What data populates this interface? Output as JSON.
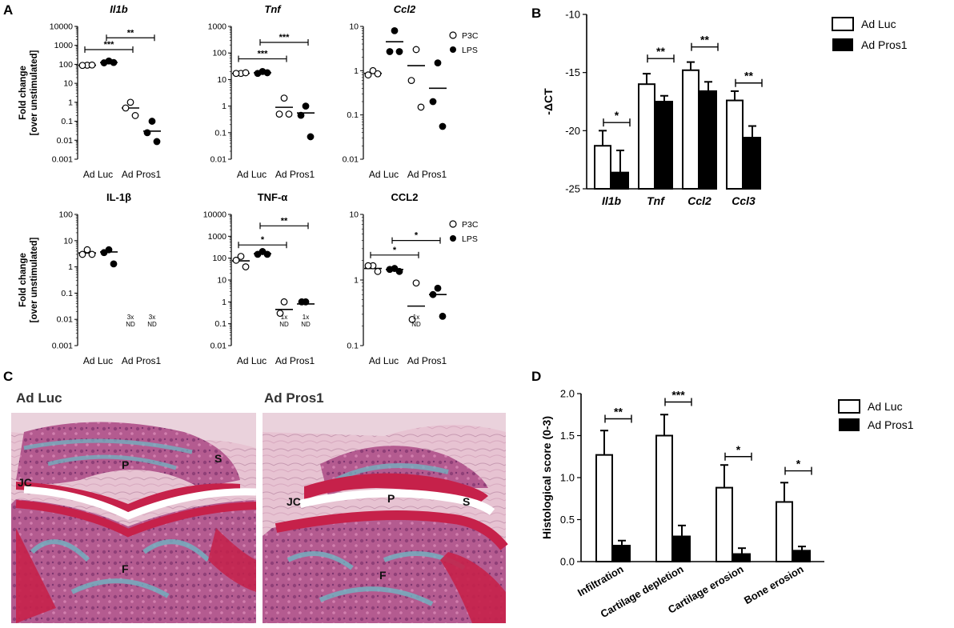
{
  "panel_labels": [
    "A",
    "B",
    "C",
    "D"
  ],
  "legend_dots": {
    "open": "P3C",
    "filled": "LPS"
  },
  "legend_bars": {
    "open": "Ad Luc",
    "filled": "Ad Pros1"
  },
  "colors": {
    "ink": "#000000",
    "open_fill": "#ffffff",
    "photo_cartilage": "#c6214a",
    "photo_stain": "#6fb4c2",
    "photo_marrow": "#b55b8f"
  },
  "chart_data": [
    {
      "id": "A1",
      "type": "scatter",
      "title": "Il1b",
      "title_italic": true,
      "ylabel": [
        "Fold change",
        "[over unstimulated]"
      ],
      "log": true,
      "ylim": [
        0.001,
        10000
      ],
      "yticks": [
        "0.001",
        "0.01",
        "0.1",
        "1",
        "10",
        "100",
        "1000",
        "10000"
      ],
      "xlabels": [
        "Ad Luc",
        "Ad Pros1"
      ],
      "groups": [
        {
          "pos": 0,
          "filled": false,
          "points": [
            90,
            88,
            92
          ],
          "median": 90
        },
        {
          "pos": 1,
          "filled": true,
          "points": [
            150,
            120,
            125
          ],
          "median": 125
        },
        {
          "pos": 2,
          "filled": false,
          "points": [
            1.0,
            0.5,
            0.2
          ],
          "median": 0.5
        },
        {
          "pos": 3,
          "filled": true,
          "points": [
            0.1,
            0.025,
            0.0085
          ],
          "median": 0.03
        }
      ],
      "sig": [
        {
          "from": 0,
          "to": 2,
          "y": 600,
          "label": "***"
        },
        {
          "from": 1,
          "to": 3,
          "y": 2500,
          "label": "**"
        }
      ],
      "legend": true
    },
    {
      "id": "A2",
      "type": "scatter",
      "title": "Tnf",
      "title_italic": true,
      "log": true,
      "ylim": [
        0.01,
        1000
      ],
      "yticks": [
        "0.01",
        "0.1",
        "1",
        "10",
        "100",
        "1000"
      ],
      "xlabels": [
        "Ad Luc",
        "Ad Pros1"
      ],
      "groups": [
        {
          "pos": 0,
          "filled": false,
          "points": [
            17,
            17,
            18
          ],
          "median": 17
        },
        {
          "pos": 1,
          "filled": true,
          "points": [
            20,
            17,
            18
          ],
          "median": 18
        },
        {
          "pos": 2,
          "filled": false,
          "points": [
            2.0,
            0.5,
            0.5
          ],
          "median": 0.9
        },
        {
          "pos": 3,
          "filled": true,
          "points": [
            1.0,
            0.45,
            0.07
          ],
          "median": 0.55
        }
      ],
      "sig": [
        {
          "from": 0,
          "to": 2,
          "y": 60,
          "label": "***"
        },
        {
          "from": 1,
          "to": 3,
          "y": 250,
          "label": "***"
        }
      ]
    },
    {
      "id": "A3",
      "type": "scatter",
      "title": "Ccl2",
      "title_italic": true,
      "log": true,
      "ylim": [
        0.01,
        10
      ],
      "yticks": [
        "0.01",
        "0.1",
        "1",
        "10"
      ],
      "xlabels": [
        "Ad Luc",
        "Ad Pros1"
      ],
      "groups": [
        {
          "pos": 0,
          "filled": false,
          "points": [
            1.0,
            0.8,
            0.85
          ],
          "median": 0.87
        },
        {
          "pos": 1,
          "filled": true,
          "points": [
            8.0,
            2.7,
            2.7
          ],
          "median": 4.5
        },
        {
          "pos": 2,
          "filled": false,
          "points": [
            3.0,
            0.6,
            0.15
          ],
          "median": 1.3
        },
        {
          "pos": 3,
          "filled": true,
          "points": [
            1.5,
            0.2,
            0.055
          ],
          "median": 0.4
        }
      ],
      "sig": [],
      "legend": true
    },
    {
      "id": "A4",
      "type": "scatter",
      "title": "IL-1β",
      "title_italic": false,
      "ylabel": [
        "Fold change",
        "[over unstimulated]"
      ],
      "log": true,
      "ylim": [
        0.001,
        100
      ],
      "yticks": [
        "0.001",
        "0.01",
        "0.1",
        "1",
        "10",
        "100"
      ],
      "xlabels": [
        "Ad Luc",
        "Ad Pros1"
      ],
      "groups": [
        {
          "pos": 0,
          "filled": false,
          "points": [
            4.5,
            3.0,
            3.0
          ],
          "median": 3.4
        },
        {
          "pos": 1,
          "filled": true,
          "points": [
            4.5,
            3.5,
            1.3
          ],
          "median": 3.7
        }
      ],
      "nd": [
        {
          "pos": 2,
          "text": [
            "3x",
            "ND"
          ]
        },
        {
          "pos": 3,
          "text": [
            "3x",
            "ND"
          ]
        }
      ],
      "sig": []
    },
    {
      "id": "A5",
      "type": "scatter",
      "title": "TNF-α",
      "title_italic": false,
      "log": true,
      "ylim": [
        0.01,
        10000
      ],
      "yticks": [
        "0.01",
        "0.1",
        "1",
        "10",
        "100",
        "1000",
        "10000"
      ],
      "xlabels": [
        "Ad Luc",
        "Ad Pros1"
      ],
      "groups": [
        {
          "pos": 0,
          "filled": false,
          "points": [
            120,
            80,
            40
          ],
          "median": 75
        },
        {
          "pos": 1,
          "filled": true,
          "points": [
            200,
            150,
            150
          ],
          "median": 160
        },
        {
          "pos": 2,
          "filled": false,
          "points": [
            1.0,
            0.3
          ],
          "median": 0.45
        },
        {
          "pos": 3,
          "filled": true,
          "points": [
            1.0,
            1.0
          ],
          "median": 0.8
        }
      ],
      "nd": [
        {
          "pos": 2,
          "text": [
            "1x",
            "ND"
          ]
        },
        {
          "pos": 3,
          "text": [
            "1x",
            "ND"
          ]
        }
      ],
      "sig": [
        {
          "from": 0,
          "to": 2,
          "y": 400,
          "label": "*"
        },
        {
          "from": 1,
          "to": 3,
          "y": 3000,
          "label": "**"
        }
      ]
    },
    {
      "id": "A6",
      "type": "scatter",
      "title": "CCL2",
      "title_italic": false,
      "log": true,
      "ylim": [
        0.1,
        10
      ],
      "yticks": [
        "0.1",
        "1",
        "10"
      ],
      "xlabels": [
        "Ad Luc",
        "Ad Pros1"
      ],
      "groups": [
        {
          "pos": 0,
          "filled": false,
          "points": [
            1.65,
            1.65,
            1.35
          ],
          "median": 1.5
        },
        {
          "pos": 1,
          "filled": true,
          "points": [
            1.5,
            1.45,
            1.35
          ],
          "median": 1.45
        },
        {
          "pos": 2,
          "filled": false,
          "points": [
            0.9,
            0.25
          ],
          "median": 0.4
        },
        {
          "pos": 3,
          "filled": true,
          "points": [
            0.75,
            0.6,
            0.28
          ],
          "median": 0.6
        }
      ],
      "nd": [
        {
          "pos": 2,
          "text": [
            "1x",
            "ND"
          ]
        }
      ],
      "sig": [
        {
          "from": 0,
          "to": 2,
          "y": 2.4,
          "label": "*"
        },
        {
          "from": 1,
          "to": 3,
          "y": 4.0,
          "label": "*"
        }
      ],
      "legend": true
    },
    {
      "id": "B",
      "type": "bar",
      "categories": [
        "Il1b",
        "Tnf",
        "Ccl2",
        "Ccl3"
      ],
      "categories_italic": true,
      "ylabel": "-ΔCT",
      "ylim": [
        -25,
        -10
      ],
      "yticks": [
        "-10",
        "-15",
        "-20",
        "-25"
      ],
      "series": [
        {
          "name": "Ad Luc",
          "filled": false,
          "values": [
            -21.3,
            -16.0,
            -14.8,
            -17.4
          ],
          "errors": [
            1.3,
            0.9,
            0.7,
            0.8
          ]
        },
        {
          "name": "Ad Pros1",
          "filled": true,
          "values": [
            -23.6,
            -17.5,
            -16.6,
            -20.6
          ],
          "errors": [
            1.9,
            0.5,
            0.8,
            1.0
          ]
        }
      ],
      "sig": [
        {
          "cat": 0,
          "y": -19.3,
          "label": "*"
        },
        {
          "cat": 1,
          "y": -13.8,
          "label": "**"
        },
        {
          "cat": 2,
          "y": -12.8,
          "label": "**"
        },
        {
          "cat": 3,
          "y": -15.9,
          "label": "**"
        }
      ]
    },
    {
      "id": "D",
      "type": "bar",
      "categories": [
        "Infiltration",
        "Cartilage depletion",
        "Cartilage erosion",
        "Bone erosion"
      ],
      "ylabel": "Histological score (0-3)",
      "ylim": [
        0,
        2.0
      ],
      "yticks": [
        "0.0",
        "0.5",
        "1.0",
        "1.5",
        "2.0"
      ],
      "series": [
        {
          "name": "Ad Luc",
          "filled": false,
          "values": [
            1.27,
            1.5,
            0.88,
            0.71
          ],
          "errors": [
            0.29,
            0.25,
            0.27,
            0.23
          ]
        },
        {
          "name": "Ad Pros1",
          "filled": true,
          "values": [
            0.19,
            0.3,
            0.09,
            0.13
          ],
          "errors": [
            0.06,
            0.13,
            0.07,
            0.05
          ]
        }
      ],
      "sig": [
        {
          "cat": 0,
          "y": 1.7,
          "label": "**"
        },
        {
          "cat": 1,
          "y": 1.9,
          "label": "***"
        },
        {
          "cat": 2,
          "y": 1.25,
          "label": "*"
        },
        {
          "cat": 3,
          "y": 1.08,
          "label": "*"
        }
      ]
    }
  ],
  "histology": {
    "left": {
      "title": "Ad Luc",
      "labels": [
        "P",
        "S",
        "JC",
        "F"
      ]
    },
    "right": {
      "title": "Ad Pros1",
      "labels": [
        "P",
        "JC",
        "S",
        "F"
      ]
    }
  }
}
